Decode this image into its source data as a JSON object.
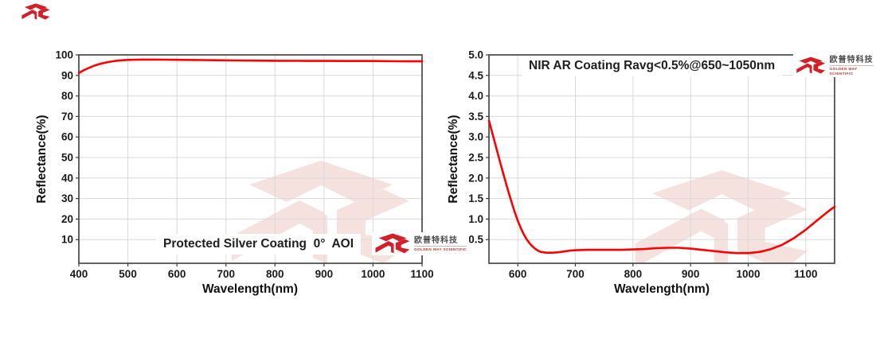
{
  "page": {
    "background": "#ffffff"
  },
  "brand": {
    "logo_color": "#d1202a",
    "watermark_color": "#f5e2df",
    "cn": "欧普特科技",
    "en": "GOLDEN WAY SCIENTIFIC"
  },
  "chart_data": [
    {
      "type": "line",
      "id": "protected-silver-coating",
      "annotation": "Protected Silver Coating  0°  AOI",
      "xlabel": "Wavelength(nm)",
      "ylabel": "Reflectance(%)",
      "xlim": [
        400,
        1100
      ],
      "ylim": [
        0,
        100
      ],
      "x_ticks": [
        400,
        500,
        600,
        700,
        800,
        900,
        1000,
        1100
      ],
      "y_ticks": [
        100,
        90,
        80,
        70,
        60,
        50,
        40,
        30,
        20,
        10
      ],
      "grid": true,
      "legend": "none",
      "line_color": "#fe0000",
      "x": [
        400,
        410,
        420,
        430,
        440,
        450,
        460,
        470,
        480,
        490,
        500,
        515,
        530,
        550,
        575,
        600,
        640,
        680,
        720,
        760,
        800,
        850,
        900,
        950,
        1000,
        1050,
        1100
      ],
      "y": [
        91.2,
        92.5,
        93.6,
        94.6,
        95.4,
        96.0,
        96.5,
        96.9,
        97.2,
        97.4,
        97.55,
        97.65,
        97.7,
        97.7,
        97.68,
        97.6,
        97.5,
        97.4,
        97.3,
        97.22,
        97.15,
        97.1,
        97.05,
        97.0,
        97.0,
        96.9,
        96.85
      ]
    },
    {
      "type": "line",
      "id": "nir-ar-coating",
      "annotation": "NIR AR Coating Ravg<0.5%@650~1050nm",
      "xlabel": "Wavelength(nm)",
      "ylabel": "Reflectance(%)",
      "xlim": [
        550,
        1150
      ],
      "ylim": [
        0,
        5
      ],
      "x_ticks": [
        600,
        700,
        800,
        900,
        1000,
        1100
      ],
      "y_ticks": [
        5.0,
        4.5,
        4.0,
        3.5,
        3.0,
        2.5,
        2.0,
        1.5,
        1.0,
        0.5
      ],
      "grid": true,
      "legend": "none",
      "line_color": "#fe0000",
      "x": [
        550,
        555,
        560,
        565,
        570,
        575,
        580,
        585,
        590,
        595,
        600,
        605,
        610,
        615,
        620,
        625,
        630,
        635,
        640,
        650,
        660,
        670,
        680,
        690,
        700,
        720,
        740,
        760,
        780,
        800,
        820,
        840,
        860,
        880,
        900,
        920,
        940,
        960,
        980,
        1000,
        1020,
        1040,
        1060,
        1080,
        1100,
        1120,
        1140,
        1150
      ],
      "y": [
        3.4,
        3.14,
        2.88,
        2.61,
        2.35,
        2.1,
        1.85,
        1.61,
        1.38,
        1.16,
        0.96,
        0.79,
        0.64,
        0.52,
        0.42,
        0.34,
        0.28,
        0.23,
        0.2,
        0.18,
        0.18,
        0.19,
        0.21,
        0.23,
        0.24,
        0.25,
        0.25,
        0.25,
        0.25,
        0.26,
        0.27,
        0.29,
        0.3,
        0.3,
        0.28,
        0.25,
        0.22,
        0.19,
        0.17,
        0.17,
        0.2,
        0.27,
        0.38,
        0.54,
        0.74,
        0.97,
        1.2,
        1.3
      ]
    }
  ]
}
